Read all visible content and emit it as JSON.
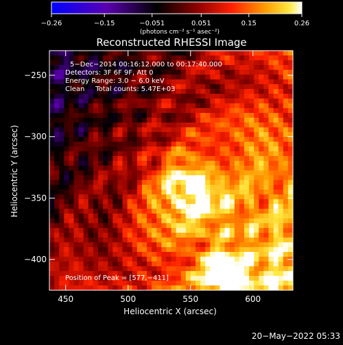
{
  "chart_data": {
    "type": "heatmap",
    "title": "Reconstructed RHESSI Image",
    "xlabel": "Heliocentric X (arcsec)",
    "ylabel": "Heliocentric Y (arcsec)",
    "xlim": [
      437,
      632
    ],
    "ylim": [
      -425,
      -230
    ],
    "x_ticks": [
      450,
      500,
      550,
      600
    ],
    "y_ticks": [
      -250,
      -300,
      -350,
      -400
    ],
    "x_tick_labels": [
      "450",
      "500",
      "550",
      "600"
    ],
    "y_tick_labels": [
      "−250",
      "−300",
      "−350",
      "−400"
    ],
    "colorbar": {
      "range": [
        -0.26,
        0.26
      ],
      "ticks": [
        -0.26,
        -0.15,
        -0.051,
        0.051,
        0.15,
        0.26
      ],
      "tick_labels": [
        "−0.26",
        "−0.15",
        "−0.051",
        "0.051",
        "0.15",
        "0.26"
      ],
      "unit_label": "(photons cm⁻² s⁻¹ asec⁻²)"
    },
    "annotations": [
      "5−Dec−2014 00:16:12.000 to 00:17:40.000",
      "Detectors: 3F 6F 9F, Att 0",
      "Energy Range: 3.0 − 6.0 keV",
      "Clean     Total counts: 5.47E+03",
      "Position of Peak = [577,−411]"
    ],
    "peak": {
      "x": 577,
      "y": -411
    },
    "bright_source": {
      "x": 549,
      "y": -343
    },
    "grid": false,
    "colormap": [
      "#0000ff",
      "#6000c0",
      "#3a0030",
      "#000000",
      "#8b0000",
      "#e00000",
      "#ff5000",
      "#ffb000",
      "#ffff40",
      "#ffffff"
    ]
  },
  "footer": {
    "timestamp": "20−May−2022 05:33"
  }
}
